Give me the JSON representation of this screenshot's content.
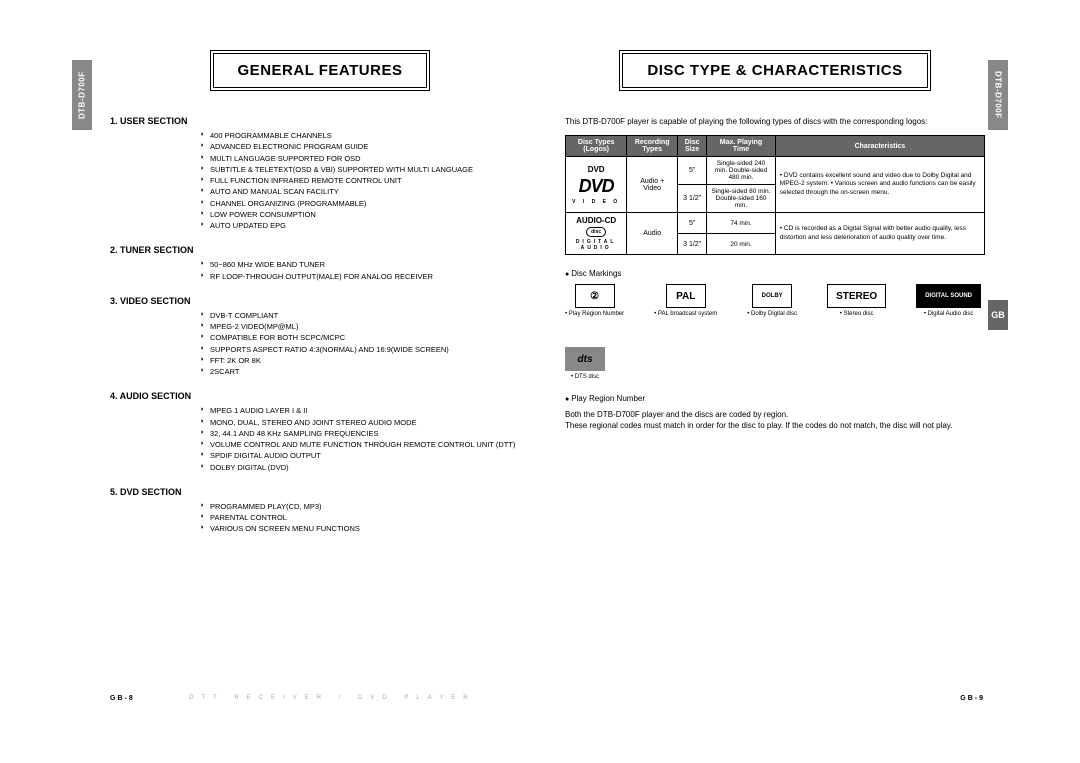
{
  "model": "DTB-D700F",
  "gb_tab": "GB",
  "left": {
    "title": "GENERAL FEATURES",
    "sections": [
      {
        "head": "1. USER SECTION",
        "items": [
          "400 PROGRAMMABLE CHANNELS",
          "ADVANCED ELECTRONIC PROGRAM GUIDE",
          "MULTI LANGUAGE SUPPORTED FOR OSD",
          "SUBTITLE & TELETEXT(OSD & VBI) SUPPORTED WITH MULTI LANGUAGE",
          "FULL FUNCTION INFRARED REMOTE CONTROL UNIT",
          "AUTO AND MANUAL SCAN FACILITY",
          "CHANNEL ORGANIZING (PROGRAMMABLE)",
          "LOW POWER CONSUMPTION",
          "AUTO UPDATED EPG"
        ]
      },
      {
        "head": "2. TUNER SECTION",
        "items": [
          "50~860 MHz WIDE BAND TUNER",
          "RF LOOP-THROUGH OUTPUT(MALE) FOR ANALOG RECEIVER"
        ]
      },
      {
        "head": "3. VIDEO SECTION",
        "items": [
          "DVB-T COMPLIANT",
          "MPEG-2 VIDEO(MP@ML)",
          "COMPATIBLE FOR BOTH SCPC/MCPC",
          "SUPPORTS ASPECT RATIO 4:3(NORMAL) AND 16:9(WIDE SCREEN)",
          "FFT: 2K OR 8K",
          "2SCART"
        ]
      },
      {
        "head": "4. AUDIO SECTION",
        "items": [
          "MPEG 1 AUDIO LAYER I & II",
          "MONO, DUAL, STEREO AND JOINT STEREO AUDIO MODE",
          "32, 44.1 AND 48 KHz SAMPLING FREQUENCIES",
          "VOLUME CONTROL AND MUTE FUNCTION THROUGH REMOTE CONTROL UNIT (DTT)",
          "SPDIF DIGITAL AUDIO OUTPUT",
          "DOLBY DIGITAL (DVD)"
        ]
      },
      {
        "head": "5. DVD SECTION",
        "items": [
          "PROGRAMMED PLAY(CD, MP3)",
          "PARENTAL CONTROL",
          "VARIOUS ON SCREEN MENU FUNCTIONS"
        ]
      }
    ],
    "page_num": "GB-8"
  },
  "right": {
    "title": "DISC TYPE & CHARACTERISTICS",
    "intro": "This DTB-D700F player is capable of playing the following types of discs with the corresponding logos:",
    "table": {
      "headers": [
        "Disc Types (Logos)",
        "Recording Types",
        "Disc Size",
        "Max. Playing Time",
        "Characteristics"
      ],
      "rows": [
        {
          "type": "DVD",
          "logo": "DVD",
          "logo_sub": "V I D E O",
          "rec": "Audio + Video",
          "sizes": [
            "5\"",
            "3 1/2\""
          ],
          "times": [
            "Single-sided 240 min. Double-sided 480 min.",
            "Single-sided 80 min. Double-sided 160 min."
          ],
          "chars": "• DVD contains excellent sound and video due to Dolby Digital and MPEG-2 system.\n• Various screen and audio functions can be easily selected through the on-screen menu."
        },
        {
          "type": "AUDIO-CD",
          "logo": "COMPACT disc",
          "logo_sub": "DIGITAL AUDIO",
          "rec": "Audio",
          "sizes": [
            "5\"",
            "3 1/2\""
          ],
          "times": [
            "74 min.",
            "20 min."
          ],
          "chars": "• CD is recorded as a Digital Signal with better audio quality, less distortion and less deterioration of audio quality over time."
        }
      ]
    },
    "markings_head": "Disc Markings",
    "markings": [
      {
        "box": "②",
        "cap": "• Play Region Number"
      },
      {
        "box": "PAL",
        "cap": "• PAL broadcast system"
      },
      {
        "box": "DOLBY",
        "cap": "• Dolby Digital disc"
      },
      {
        "box": "STEREO",
        "cap": "• Stereo disc"
      },
      {
        "box": "DIGITAL SOUND",
        "cap": "• Digital Audio disc"
      },
      {
        "box": "dts",
        "cap": "• DTS disc"
      }
    ],
    "region_head": "Play Region Number",
    "region_text": "Both the DTB-D700F player and the discs are coded by region.\nThese regional codes must match in order for the disc to play. If the codes do not match, the disc will not play.",
    "page_num": "GB-9",
    "footer_mid": "DTT RECEIVER / DVD PLAYER"
  }
}
